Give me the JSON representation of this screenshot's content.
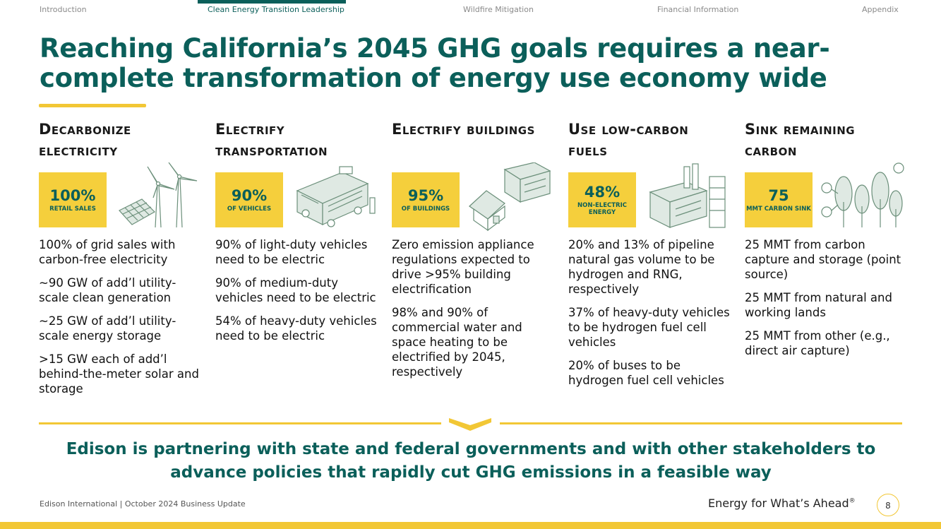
{
  "nav": {
    "items": [
      "Introduction",
      "Clean Energy Transition Leadership",
      "Wildfire Mitigation",
      "Financial Information",
      "Appendix"
    ],
    "active_index": 1
  },
  "title": "Reaching California’s 2045 GHG goals requires a near-complete transformation of energy use economy wide",
  "columns": [
    {
      "heading": "Decarbonize electricity",
      "stat_value": "100%",
      "stat_caption": "RETAIL SALES",
      "icon": "wind-solar-icon",
      "bullets": [
        "100% of grid sales with carbon-free electricity",
        "~90 GW of add’l utility-scale clean generation",
        "~25 GW of add’l utility-scale energy storage",
        ">15 GW each of add’l behind-the-meter solar and storage"
      ]
    },
    {
      "heading": "Electrify transportation",
      "stat_value": "90%",
      "stat_caption": "OF VEHICLES",
      "icon": "electric-bus-icon",
      "bullets": [
        "90% of light-duty vehicles need to be electric",
        "90% of medium-duty vehicles need to be electric",
        "54% of heavy-duty vehicles need to be electric"
      ]
    },
    {
      "heading": "Electrify buildings",
      "stat_value": "95%",
      "stat_caption": "OF BUILDINGS",
      "icon": "buildings-icon",
      "bullets": [
        "Zero emission appliance regulations expected to drive >95% building electrification",
        "98% and 90% of commercial water and space heating to be electrified by 2045, respectively"
      ]
    },
    {
      "heading": "Use low-carbon fuels",
      "stat_value": "48%",
      "stat_caption": "NON-ELECTRIC ENERGY",
      "icon": "factory-icon",
      "bullets": [
        "20% and 13% of pipeline natural gas volume to be hydrogen and RNG, respectively",
        "37% of heavy-duty vehicles to be hydrogen fuel cell vehicles",
        "20% of buses to be hydrogen fuel cell vehicles"
      ]
    },
    {
      "heading": "Sink remaining carbon",
      "stat_value": "75",
      "stat_caption": "MMT CARBON SINK",
      "icon": "trees-co2-icon",
      "bullets": [
        "25 MMT from carbon capture and storage (point source)",
        "25 MMT from natural and working lands",
        "25 MMT from other (e.g., direct air capture)"
      ]
    }
  ],
  "callout": "Edison is partnering with state and federal governments and with other stakeholders to advance policies that rapidly cut GHG emissions in a feasible way",
  "footer": {
    "left": "Edison International |  October 2024 Business Update",
    "tagline": "Energy for What’s Ahead",
    "tagline_mark": "®",
    "page": "8"
  },
  "colors": {
    "teal": "#0b5f5a",
    "yellow": "#f2c735",
    "stat_bg": "#f5cf3c"
  }
}
